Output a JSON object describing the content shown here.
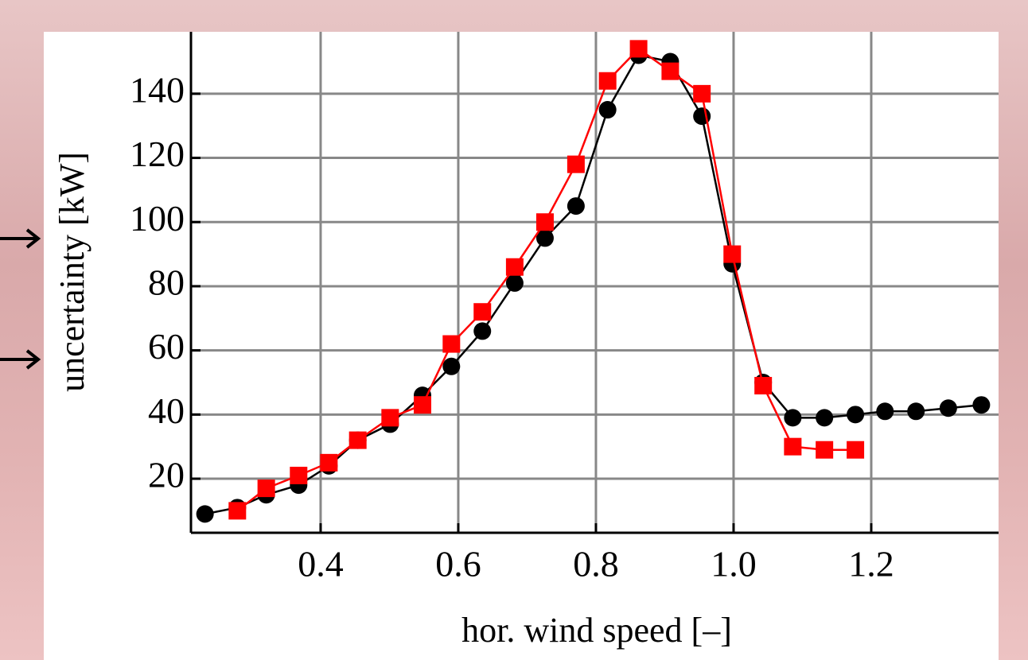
{
  "chart_data": {
    "type": "line",
    "x_label": "hor. wind speed [–]",
    "y_label": "uncertainty [kW]",
    "xlim": [
      0.2116,
      1.385
    ],
    "ylim": [
      3.15,
      159.3
    ],
    "xticks": [
      0.4,
      0.6,
      0.8,
      {
        "value": 1,
        "label": "1.0"
      },
      1.2
    ],
    "yticks": [
      20,
      40,
      60,
      80,
      100,
      120,
      140
    ],
    "grid": true,
    "series": [
      {
        "color": "#000000",
        "marker": "circle",
        "x": [
          0.232,
          0.279,
          0.321,
          0.368,
          0.412,
          0.454,
          0.501,
          0.548,
          0.59,
          0.635,
          0.682,
          0.726,
          0.771,
          0.817,
          0.862,
          0.908,
          0.954,
          0.998,
          1.043,
          1.086,
          1.132,
          1.177,
          1.22,
          1.265,
          1.312,
          1.36
        ],
        "values": [
          9,
          11,
          15,
          18,
          24,
          32,
          37,
          46,
          55,
          66,
          81,
          95,
          105,
          135,
          152,
          150,
          133,
          87,
          50,
          39,
          39,
          40,
          41,
          41,
          42,
          43
        ]
      },
      {
        "color": "#ff0000",
        "marker": "square",
        "x": [
          0.279,
          0.321,
          0.368,
          0.412,
          0.454,
          0.501,
          0.548,
          0.59,
          0.635,
          0.682,
          0.726,
          0.771,
          0.817,
          0.862,
          0.908,
          0.954,
          0.998,
          1.043,
          1.086,
          1.132,
          1.177
        ],
        "values": [
          10,
          17,
          21,
          25,
          32,
          39,
          43,
          62,
          72,
          86,
          100,
          118,
          144,
          154,
          147,
          140,
          90,
          49,
          30,
          29,
          29
        ]
      }
    ]
  }
}
